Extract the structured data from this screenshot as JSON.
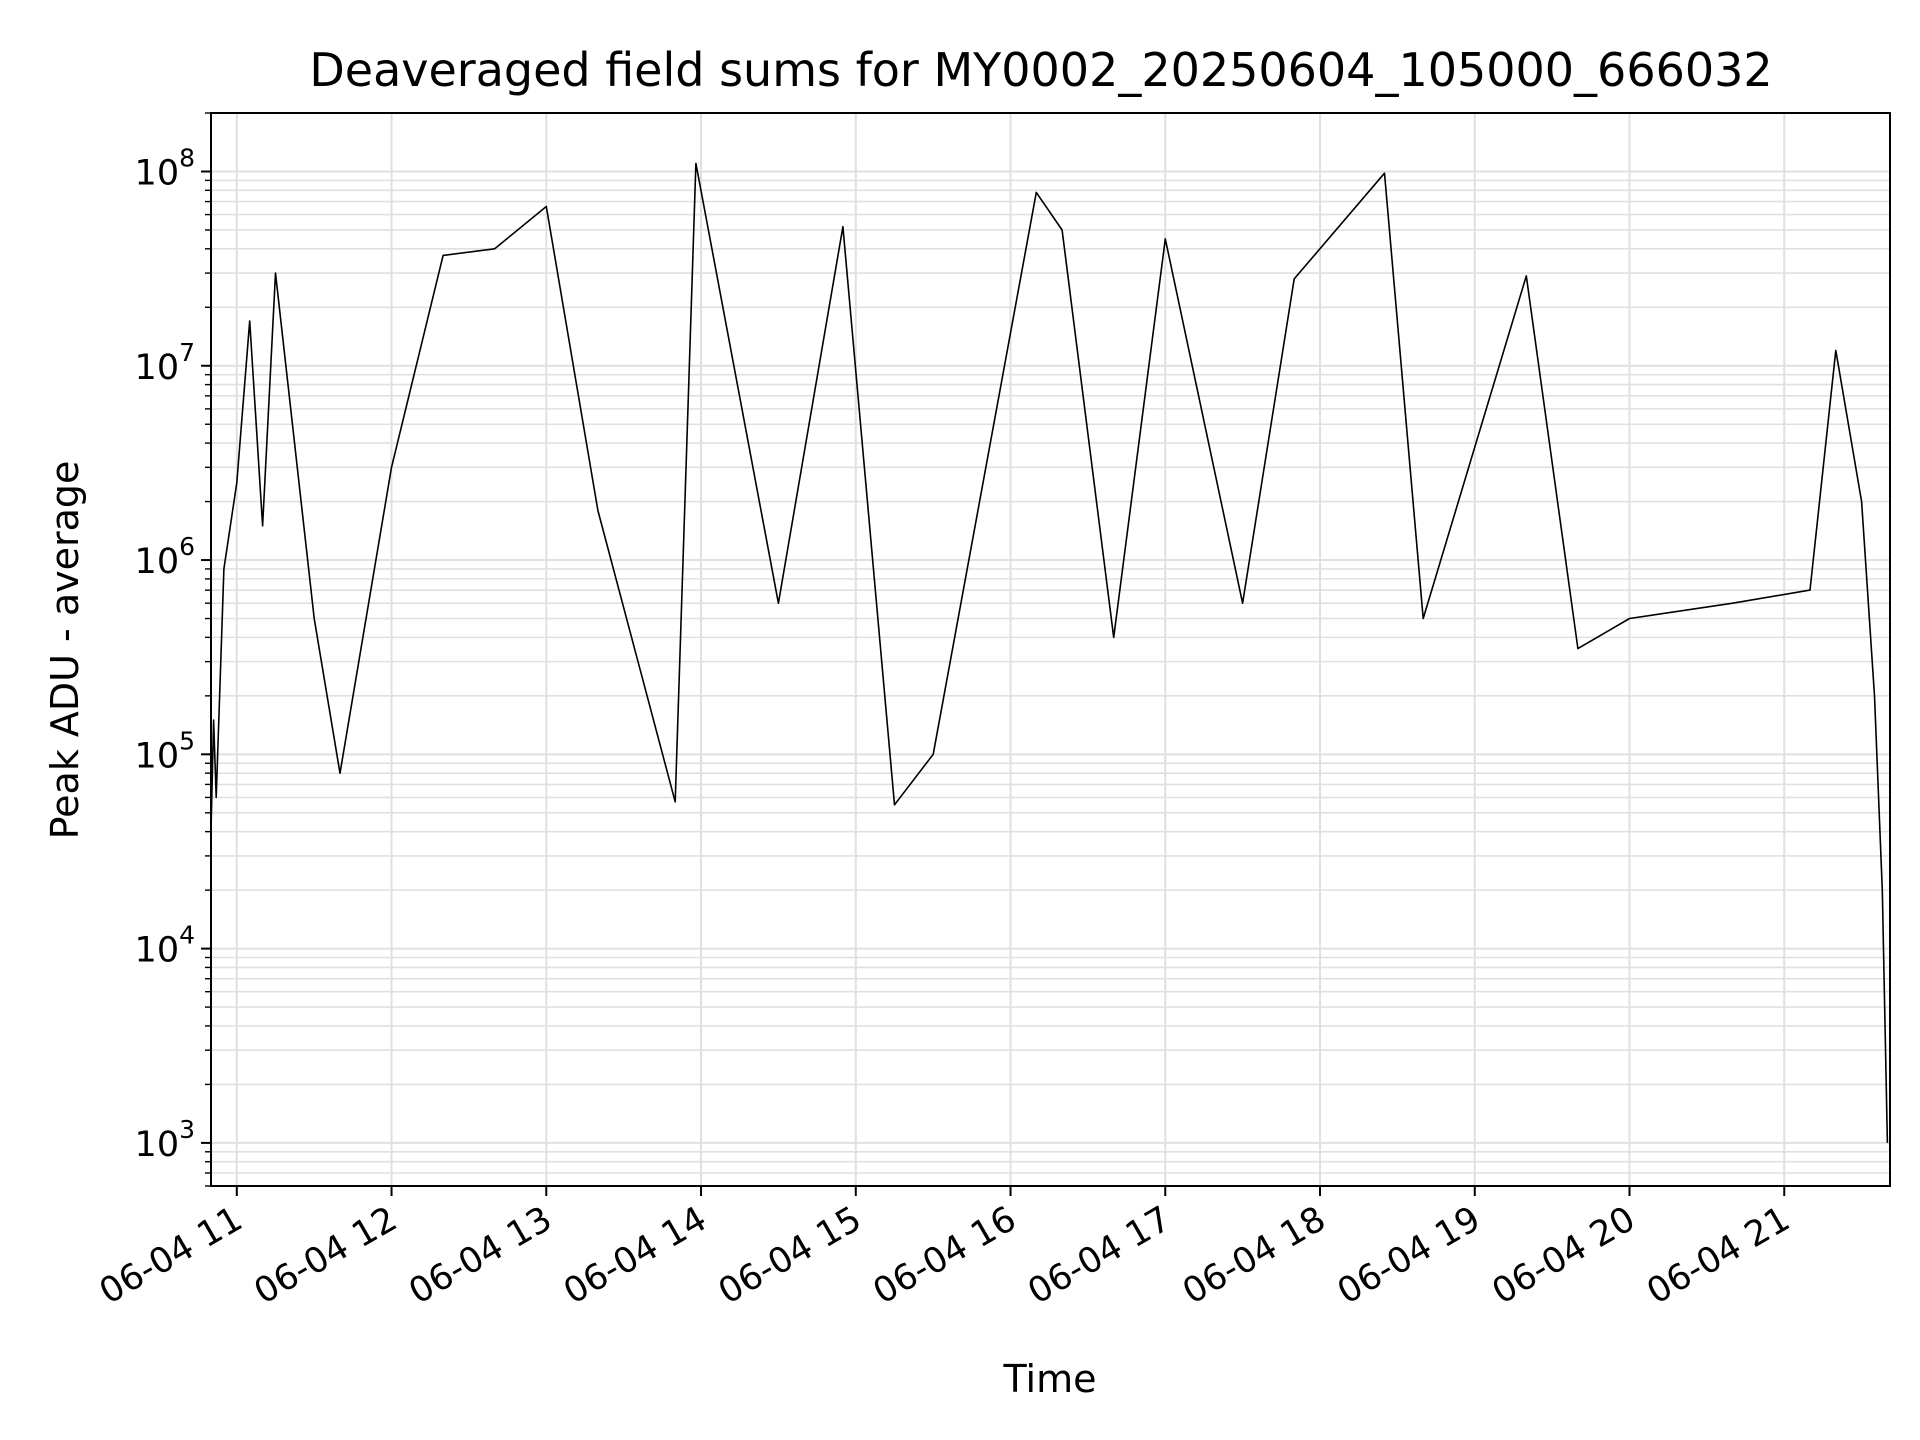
{
  "chart_data": {
    "type": "line",
    "title": "Deaveraged field sums for MY0002_20250604_105000_666032",
    "xlabel": "Time",
    "ylabel": "Peak ADU - average",
    "yscale": "log",
    "ylim": [
      600,
      200000000
    ],
    "xlim": [
      "06-04 10:50",
      "06-04 21:41"
    ],
    "grid": true,
    "line_color": "#000000",
    "grid_color": "#e0e0e0",
    "xticks": [
      {
        "label": "06-04 11",
        "time": "06-04 11:00"
      },
      {
        "label": "06-04 12",
        "time": "06-04 12:00"
      },
      {
        "label": "06-04 13",
        "time": "06-04 13:00"
      },
      {
        "label": "06-04 14",
        "time": "06-04 14:00"
      },
      {
        "label": "06-04 15",
        "time": "06-04 15:00"
      },
      {
        "label": "06-04 16",
        "time": "06-04 16:00"
      },
      {
        "label": "06-04 17",
        "time": "06-04 17:00"
      },
      {
        "label": "06-04 18",
        "time": "06-04 18:00"
      },
      {
        "label": "06-04 19",
        "time": "06-04 19:00"
      },
      {
        "label": "06-04 20",
        "time": "06-04 20:00"
      },
      {
        "label": "06-04 21",
        "time": "06-04 21:00"
      }
    ],
    "yticks": [
      {
        "base": "10",
        "exp": "3",
        "value": 1000
      },
      {
        "base": "10",
        "exp": "4",
        "value": 10000
      },
      {
        "base": "10",
        "exp": "5",
        "value": 100000
      },
      {
        "base": "10",
        "exp": "6",
        "value": 1000000
      },
      {
        "base": "10",
        "exp": "7",
        "value": 10000000
      },
      {
        "base": "10",
        "exp": "8",
        "value": 100000000
      }
    ],
    "series": [
      {
        "points": [
          [
            "06-04 10:50",
            40000
          ],
          [
            "06-04 10:51",
            150000
          ],
          [
            "06-04 10:52",
            60000
          ],
          [
            "06-04 10:55",
            900000
          ],
          [
            "06-04 11:00",
            2500000
          ],
          [
            "06-04 11:05",
            17000000
          ],
          [
            "06-04 11:10",
            1500000
          ],
          [
            "06-04 11:15",
            30000000
          ],
          [
            "06-04 11:30",
            500000
          ],
          [
            "06-04 11:40",
            80000
          ],
          [
            "06-04 12:00",
            3000000
          ],
          [
            "06-04 12:20",
            37000000
          ],
          [
            "06-04 12:40",
            40000000
          ],
          [
            "06-04 13:00",
            66000000
          ],
          [
            "06-04 13:20",
            1800000
          ],
          [
            "06-04 13:50",
            57000
          ],
          [
            "06-04 13:58",
            110000000
          ],
          [
            "06-04 14:30",
            600000
          ],
          [
            "06-04 14:55",
            52000000
          ],
          [
            "06-04 15:15",
            55000
          ],
          [
            "06-04 15:30",
            100000
          ],
          [
            "06-04 16:10",
            78000000
          ],
          [
            "06-04 16:20",
            50000000
          ],
          [
            "06-04 16:40",
            400000
          ],
          [
            "06-04 17:00",
            45000000
          ],
          [
            "06-04 17:30",
            600000
          ],
          [
            "06-04 17:50",
            28000000
          ],
          [
            "06-04 18:25",
            98000000
          ],
          [
            "06-04 18:40",
            500000
          ],
          [
            "06-04 19:20",
            29000000
          ],
          [
            "06-04 19:40",
            350000
          ],
          [
            "06-04 20:00",
            500000
          ],
          [
            "06-04 20:40",
            600000
          ],
          [
            "06-04 21:10",
            700000
          ],
          [
            "06-04 21:20",
            12000000
          ],
          [
            "06-04 21:30",
            2000000
          ],
          [
            "06-04 21:35",
            200000
          ],
          [
            "06-04 21:38",
            20000
          ],
          [
            "06-04 21:40",
            1000
          ]
        ]
      }
    ]
  }
}
